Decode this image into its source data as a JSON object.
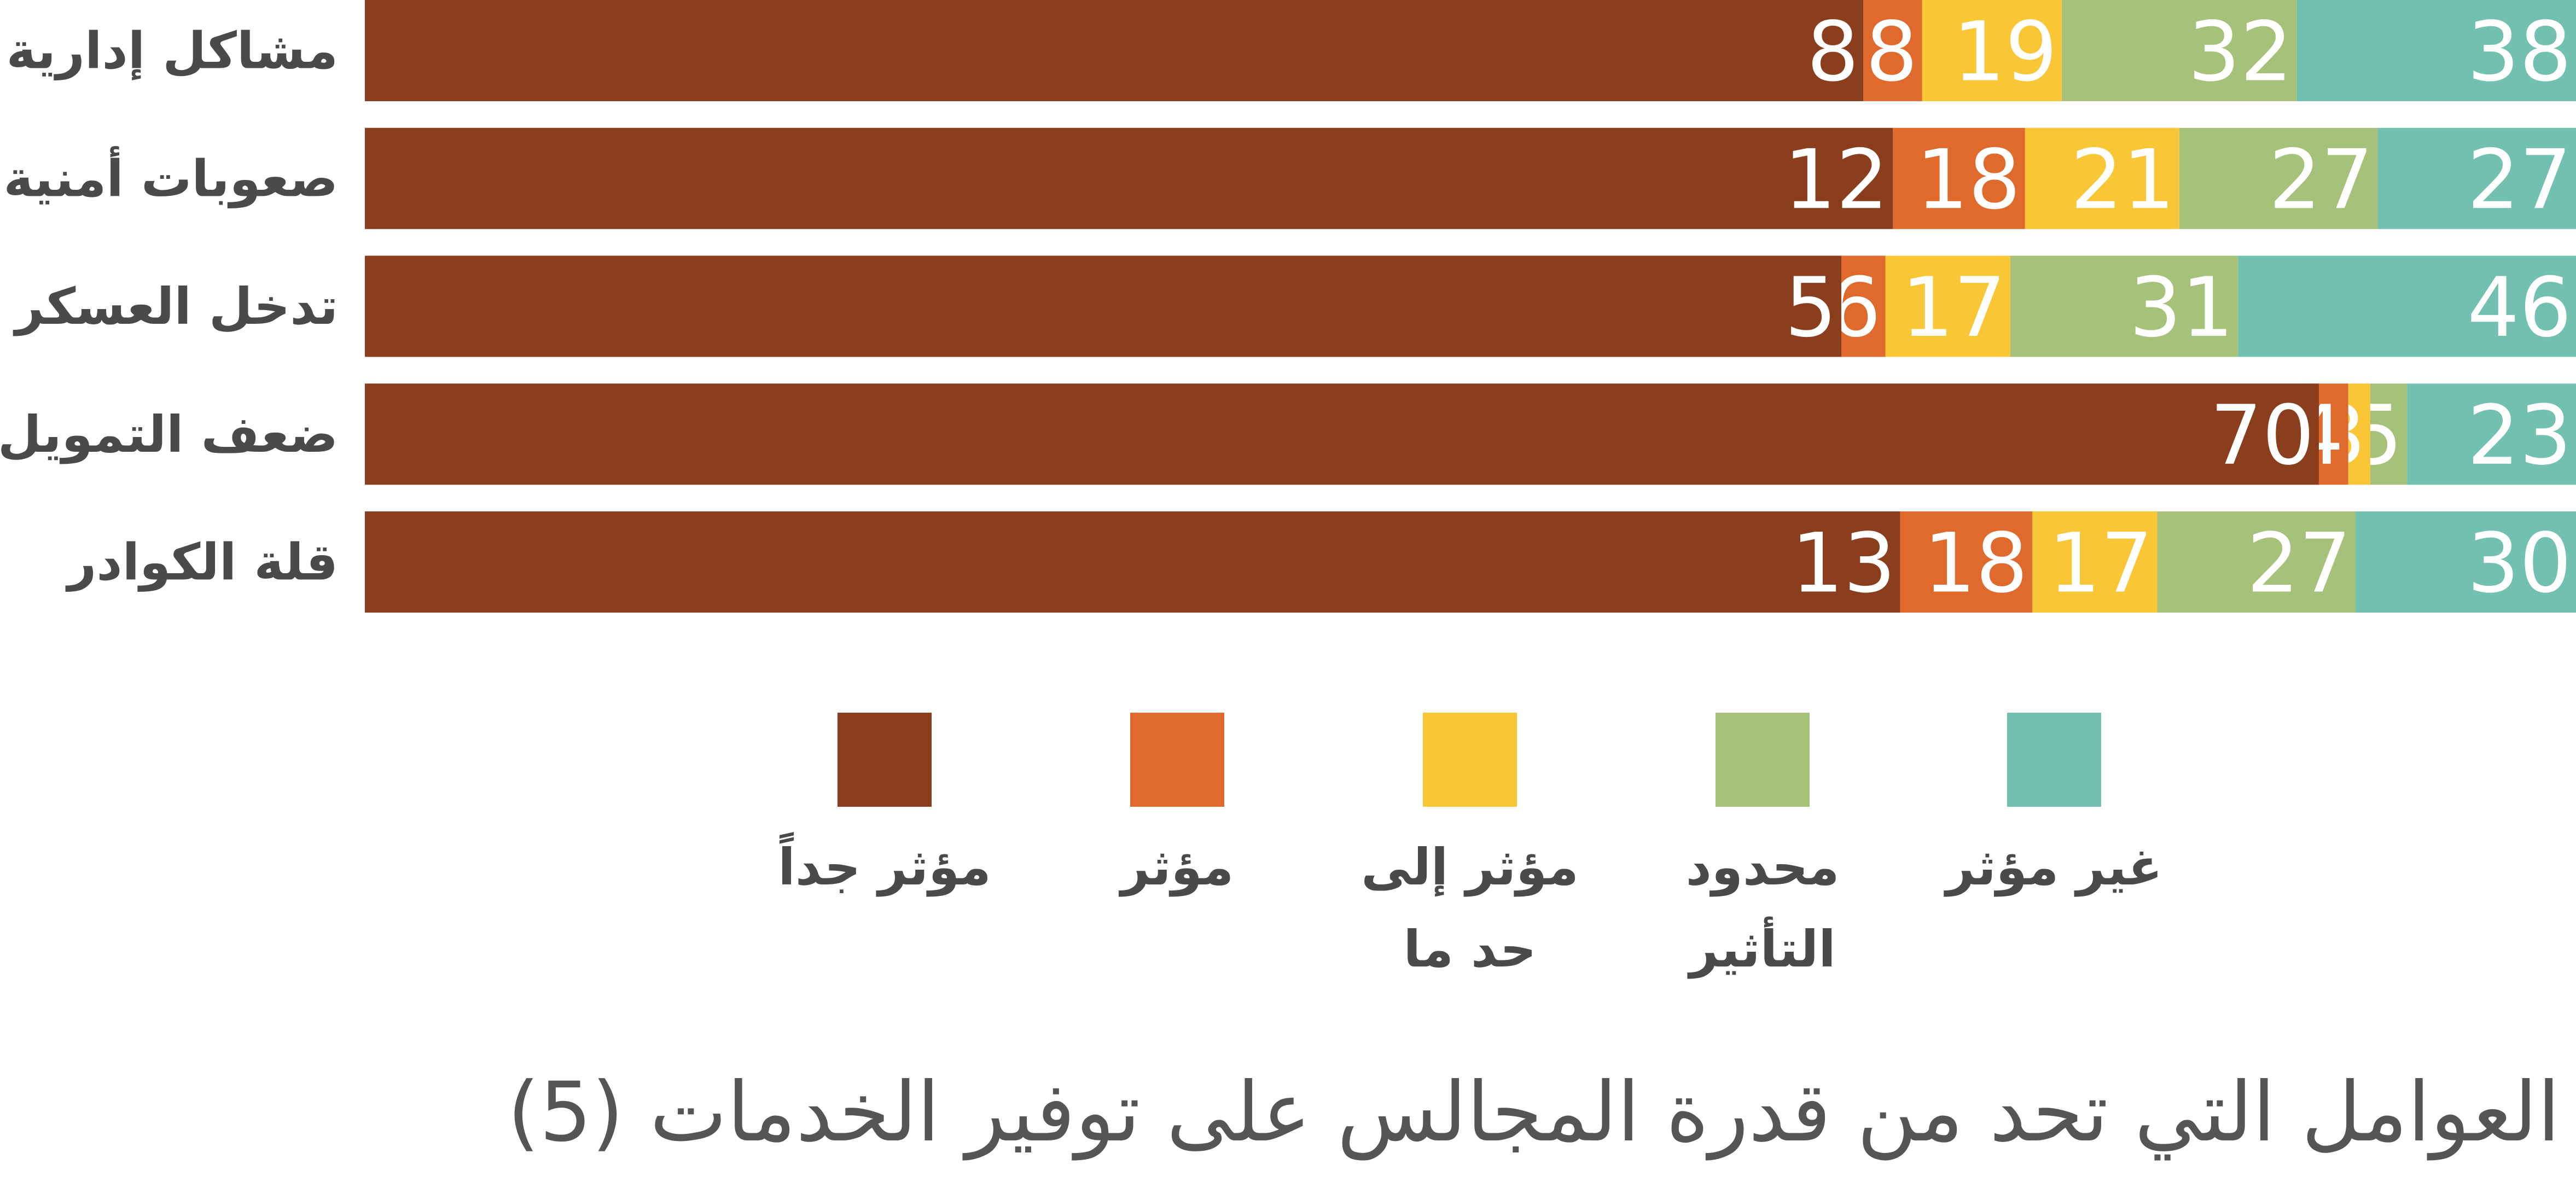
{
  "chart_data": {
    "type": "bar",
    "orientation": "horizontal",
    "stacked": true,
    "direction": "rtl",
    "title": "العوامل التي تحد من قدرة المجالس على توفير الخدمات (5)",
    "categories": [
      "مشاكل إدارية",
      "صعوبات أمنية",
      "تدخل العسكر",
      "ضعف التمويل",
      "قلة الكوادر"
    ],
    "series": [
      {
        "name": "غير مؤثر",
        "color": "#72c1b0",
        "values": [
          38,
          27,
          46,
          23,
          30
        ]
      },
      {
        "name": "محدود التأثير",
        "color": "#a6c27a",
        "values": [
          32,
          27,
          31,
          5,
          27
        ]
      },
      {
        "name": "مؤثر إلى حد ما",
        "color": "#f9c636",
        "values": [
          19,
          21,
          17,
          3,
          17
        ]
      },
      {
        "name": "مؤثر",
        "color": "#df6a2b",
        "values": [
          8,
          18,
          6,
          4,
          18
        ]
      },
      {
        "name": "مؤثر جداً",
        "color": "#8b3e1d",
        "values": [
          8,
          12,
          5,
          70,
          13
        ]
      }
    ],
    "legend": {
      "position": "bottom",
      "labels": [
        [
          "غير مؤثر"
        ],
        [
          "محدود",
          "التأثير"
        ],
        [
          "مؤثر إلى",
          "حد ما"
        ],
        [
          "مؤثر"
        ],
        [
          "مؤثر جداً"
        ]
      ]
    },
    "xlim": [
      0,
      105
    ],
    "grid": false
  }
}
